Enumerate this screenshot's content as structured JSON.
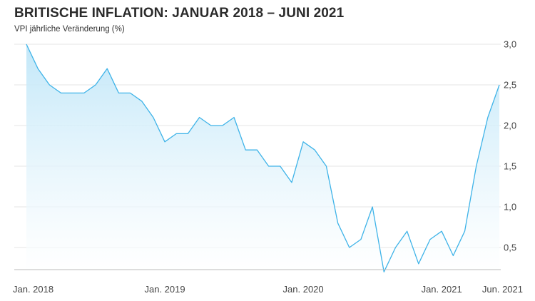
{
  "title": "BRITISCHE INFLATION: JANUAR 2018 – JUNI 2021",
  "subtitle": "VPI jährliche Veränderung (%)",
  "colors": {
    "line": "#3eb3e8",
    "fill_top": "#bfe6f8",
    "fill_bottom": "#ffffff",
    "grid": "#e6e6e6",
    "axis": "#bbbbbb"
  },
  "chart_data": {
    "type": "area",
    "title": "BRITISCHE INFLATION: JANUAR 2018 – JUNI 2021",
    "ylabel": "VPI jährliche Veränderung (%)",
    "xlabel": "",
    "ylim": [
      0.2,
      3.0
    ],
    "y_ticks": [
      "3,0",
      "2,5",
      "2,0",
      "1,5",
      "1,0",
      "0,5"
    ],
    "y_tick_values": [
      3.0,
      2.5,
      2.0,
      1.5,
      1.0,
      0.5
    ],
    "x_tick_labels": [
      "Jan. 2018",
      "Jan. 2019",
      "Jan. 2020",
      "Jan. 2021",
      "Jun. 2021"
    ],
    "x_tick_months": [
      0,
      12,
      24,
      36,
      41
    ],
    "grid": true,
    "series": [
      {
        "values": [
          3.0,
          2.7,
          2.5,
          2.4,
          2.4,
          2.4,
          2.5,
          2.7,
          2.4,
          2.4,
          2.3,
          2.1,
          1.8,
          1.9,
          1.9,
          2.1,
          2.0,
          2.0,
          2.1,
          1.7,
          1.7,
          1.5,
          1.5,
          1.3,
          1.8,
          1.7,
          1.5,
          0.8,
          0.5,
          0.6,
          1.0,
          0.2,
          0.5,
          0.7,
          0.3,
          0.6,
          0.7,
          0.4,
          0.7,
          1.5,
          2.1,
          2.5
        ]
      }
    ]
  }
}
